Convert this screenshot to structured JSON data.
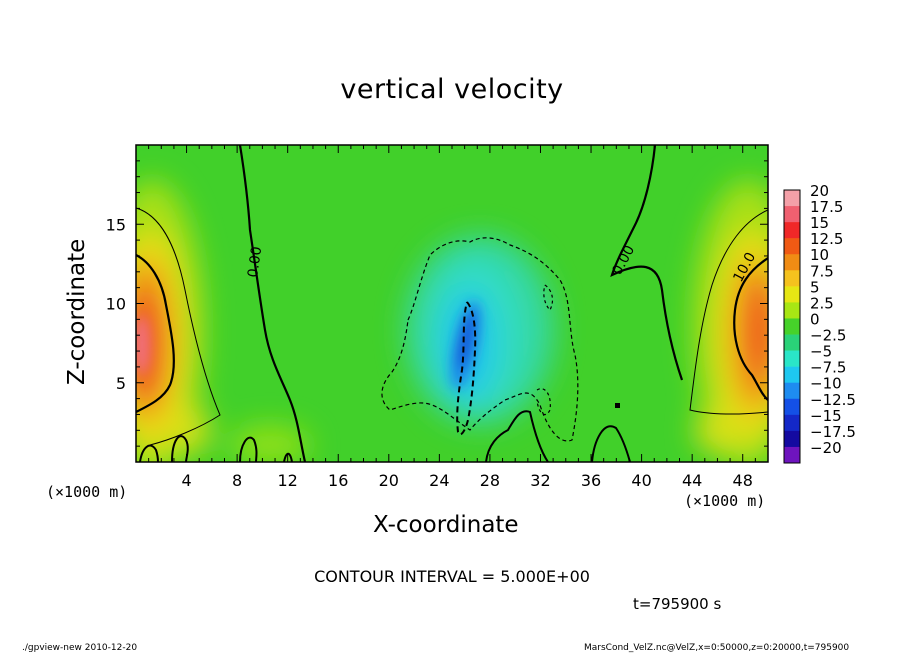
{
  "figure": {
    "title": "vertical velocity",
    "contour_interval": "CONTOUR INTERVAL = 5.000E+00",
    "time_label": "t=795900 s",
    "footer_left": "./gpview-new  2010-12-20",
    "footer_right": "MarsCond_VelZ.nc@VelZ,x=0:50000,z=0:20000,t=795900"
  },
  "chart_data": {
    "type": "heatmap",
    "title": "vertical velocity",
    "xlabel": "X-coordinate",
    "ylabel": "Z-coordinate",
    "x_unit": "(×1000 m)",
    "y_unit": "(×1000 m)",
    "xlim": [
      0,
      50
    ],
    "ylim": [
      0,
      20
    ],
    "x_ticks": [
      4,
      8,
      12,
      16,
      20,
      24,
      28,
      32,
      36,
      40,
      44,
      48
    ],
    "y_ticks": [
      5,
      10,
      15
    ],
    "colorbar": {
      "labels": [
        "20",
        "17.5",
        "15",
        "12.5",
        "10",
        "7.5",
        "5",
        "2.5",
        "0",
        "−2.5",
        "−5",
        "−7.5",
        "−10",
        "−12.5",
        "−15",
        "−17.5",
        "−20"
      ],
      "colors": [
        "#f4a0a8",
        "#f06070",
        "#f02828",
        "#f05a14",
        "#f08c14",
        "#f5c21e",
        "#e6e614",
        "#a8e614",
        "#46d22a",
        "#2ad278",
        "#2ae6c8",
        "#1ec8f0",
        "#1e8cf0",
        "#1450e6",
        "#1428c8",
        "#140aa0",
        "#6e14be"
      ]
    },
    "contour_labels": [
      {
        "text": "0.00",
        "x": 9.3,
        "z": 12.3
      },
      {
        "text": "0.00",
        "x": 38.9,
        "z": 13.0
      },
      {
        "text": "10.0",
        "x": 47.3,
        "z": 12.2
      }
    ],
    "features": [
      {
        "name": "updraft-left",
        "x": 0.8,
        "z": 9.0,
        "peak": 17.5
      },
      {
        "name": "updraft-right",
        "x": 49.2,
        "z": 8.5,
        "peak": 15
      },
      {
        "name": "downdraft-center",
        "x": 26.2,
        "z": 6.5,
        "peak": -12.5
      }
    ]
  }
}
